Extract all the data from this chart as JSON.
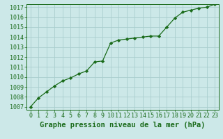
{
  "x": [
    0,
    1,
    2,
    3,
    4,
    5,
    6,
    7,
    8,
    9,
    10,
    11,
    12,
    13,
    14,
    15,
    16,
    17,
    18,
    19,
    20,
    21,
    22,
    23
  ],
  "y": [
    1007.0,
    1007.9,
    1008.5,
    1009.1,
    1009.6,
    1009.9,
    1010.3,
    1010.6,
    1011.5,
    1011.6,
    1013.4,
    1013.7,
    1013.8,
    1013.9,
    1014.0,
    1014.1,
    1014.1,
    1015.0,
    1015.9,
    1016.5,
    1016.7,
    1016.9,
    1017.0,
    1017.3
  ],
  "ylim_min": 1007,
  "ylim_max": 1017,
  "yticks": [
    1007,
    1008,
    1009,
    1010,
    1011,
    1012,
    1013,
    1014,
    1015,
    1016,
    1017
  ],
  "xticks": [
    0,
    1,
    2,
    3,
    4,
    5,
    6,
    7,
    8,
    9,
    10,
    11,
    12,
    13,
    14,
    15,
    16,
    17,
    18,
    19,
    20,
    21,
    22,
    23
  ],
  "xlabel": "Graphe pression niveau de la mer (hPa)",
  "line_color": "#1a6b1a",
  "marker": "D",
  "marker_size": 2.2,
  "bg_color": "#cce8e8",
  "grid_color": "#aacece",
  "tick_label_color": "#1a6b1a",
  "xlabel_color": "#1a6b1a",
  "xlabel_fontsize": 7.5,
  "tick_fontsize": 6.0,
  "linewidth": 0.9
}
